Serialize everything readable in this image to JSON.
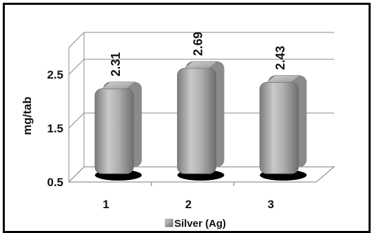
{
  "chart_data": {
    "type": "bar",
    "categories": [
      "1",
      "2",
      "3"
    ],
    "series": [
      {
        "name": "Silver (Ag)",
        "values": [
          2.31,
          2.69,
          2.43
        ]
      }
    ],
    "data_labels": [
      "2.31",
      "2.69",
      "2.43"
    ],
    "ylabel": "mg/tab",
    "xlabel": "",
    "yticks": [
      "0.5",
      "1.5",
      "2.5"
    ],
    "ylim": [
      0.5,
      3
    ],
    "grid": true,
    "legend_position": "bottom",
    "style": "3d-cylinder",
    "colors": {
      "bar": "#a8a8a8",
      "shadow": "#000000",
      "grid": "#888888"
    }
  }
}
